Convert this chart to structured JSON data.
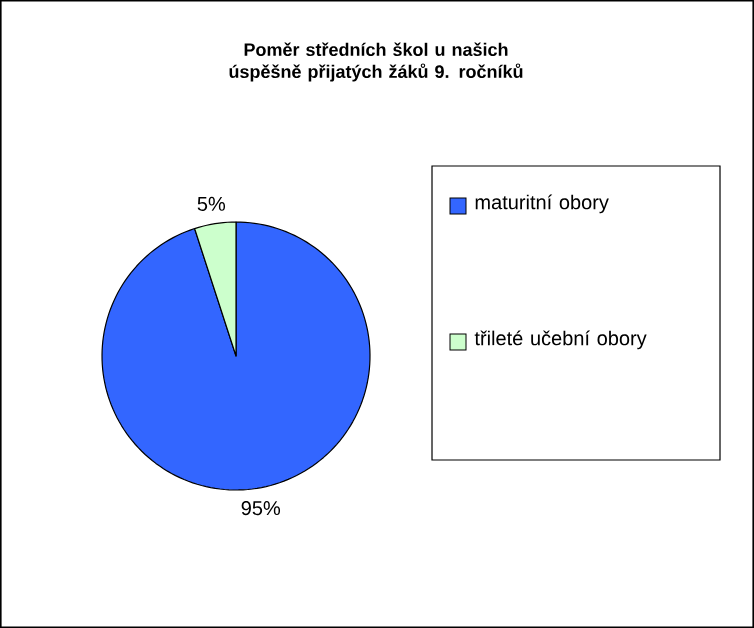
{
  "chart_data": {
    "type": "pie",
    "title": "Poměr středních škol u našich úspěšně přijatých žáků 9. ročníků",
    "categories": [
      "maturitní obory",
      "třileté učební obory"
    ],
    "values": [
      95,
      5
    ],
    "colors": [
      "#3366ff",
      "#ccffcc"
    ],
    "value_labels": [
      "95%",
      "5%"
    ],
    "legend": "right"
  }
}
